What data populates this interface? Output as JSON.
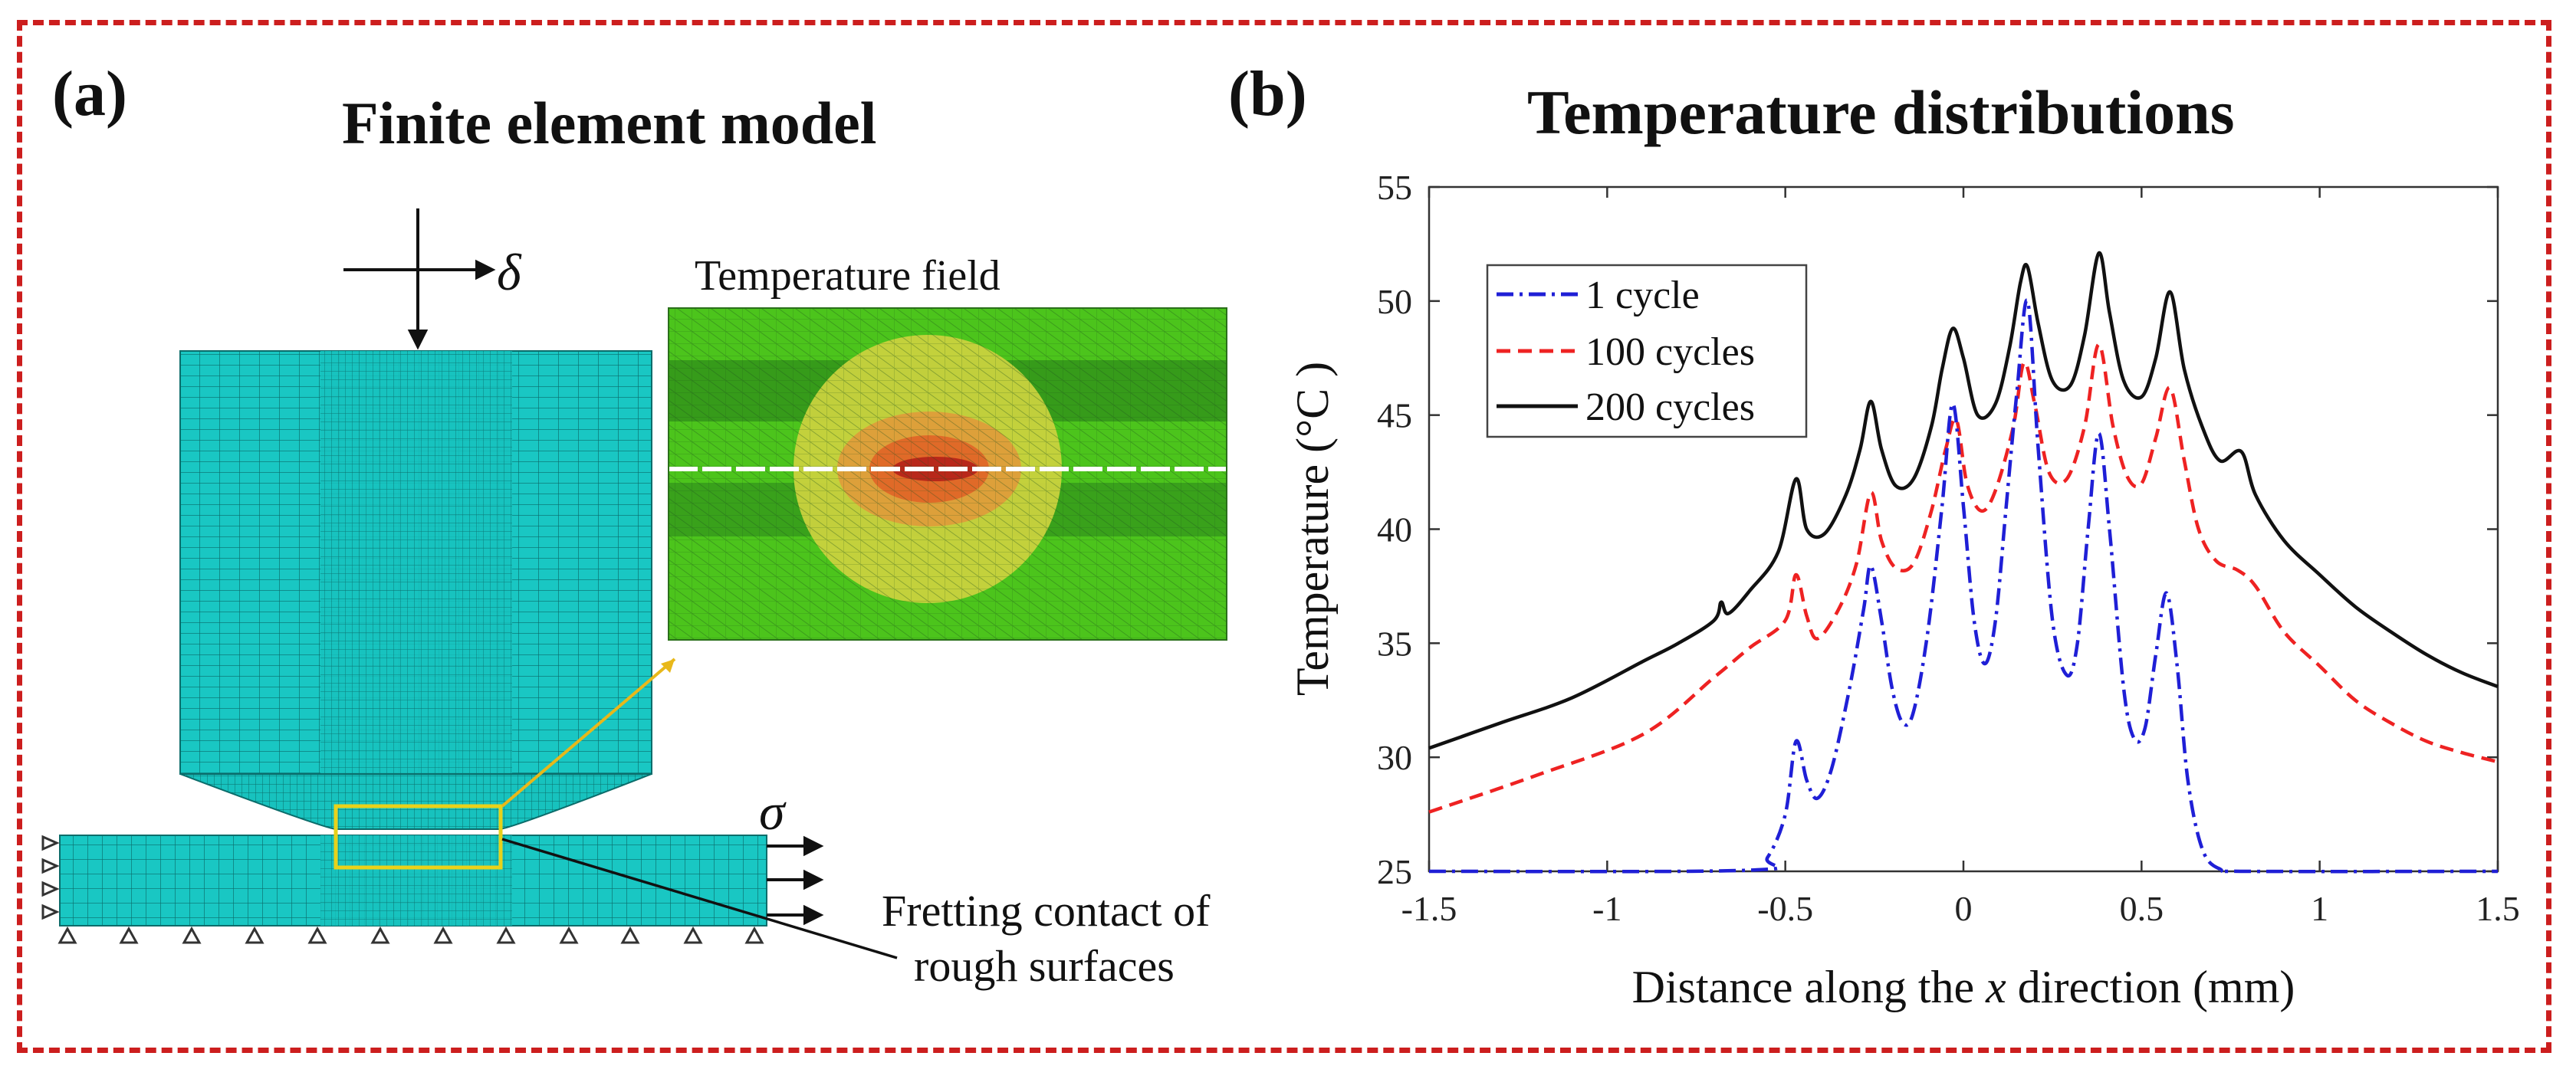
{
  "panel_a": {
    "label": "(a)",
    "title": "Finite element model",
    "inset_title": "Temperature field",
    "delta_symbol": "δ",
    "sigma_symbol": "σ",
    "annotation_line1": "Fretting contact of",
    "annotation_line2": "rough surfaces",
    "colors": {
      "mesh": "#19c7c3",
      "mesh_line": "#0b6d6b",
      "frame": "#cc1e1e",
      "highlight": "#e8d21a"
    }
  },
  "panel_b": {
    "label": "(b)"
  },
  "chart_data": {
    "type": "line",
    "title": "Temperature distributions",
    "xlabel_prefix": "Distance along the ",
    "xlabel_var": "x",
    "xlabel_suffix": " direction (mm)",
    "ylabel": "Temperature (°C )",
    "xlim": [
      -1.5,
      1.5
    ],
    "ylim": [
      25,
      55
    ],
    "xticks": [
      -1.5,
      -1,
      -0.5,
      0,
      0.5,
      1,
      1.5
    ],
    "xtick_labels": [
      "-1.5",
      "-1",
      "-0.5",
      "0",
      "0.5",
      "1",
      "1.5"
    ],
    "yticks": [
      25,
      30,
      35,
      40,
      45,
      50,
      55
    ],
    "ytick_labels": [
      "25",
      "30",
      "35",
      "40",
      "45",
      "50",
      "55"
    ],
    "legend_position": "top-left",
    "series": [
      {
        "name": "1 cycle",
        "color": "#1f1fd6",
        "style": "dashdot",
        "points": [
          [
            -1.5,
            25
          ],
          [
            -0.6,
            25.05
          ],
          [
            -0.55,
            25.6
          ],
          [
            -0.5,
            27.5
          ],
          [
            -0.47,
            30.7
          ],
          [
            -0.44,
            29
          ],
          [
            -0.41,
            28.2
          ],
          [
            -0.37,
            29.5
          ],
          [
            -0.32,
            33
          ],
          [
            -0.28,
            36.5
          ],
          [
            -0.26,
            38.4
          ],
          [
            -0.23,
            36
          ],
          [
            -0.2,
            33
          ],
          [
            -0.17,
            31.5
          ],
          [
            -0.14,
            32
          ],
          [
            -0.1,
            35.5
          ],
          [
            -0.06,
            41
          ],
          [
            -0.03,
            45.5
          ],
          [
            0,
            41
          ],
          [
            0.03,
            36
          ],
          [
            0.06,
            34.1
          ],
          [
            0.09,
            36
          ],
          [
            0.12,
            41
          ],
          [
            0.15,
            46
          ],
          [
            0.18,
            50
          ],
          [
            0.21,
            43.5
          ],
          [
            0.25,
            36
          ],
          [
            0.29,
            33.6
          ],
          [
            0.32,
            35
          ],
          [
            0.35,
            40
          ],
          [
            0.38,
            44.2
          ],
          [
            0.41,
            40
          ],
          [
            0.45,
            33
          ],
          [
            0.48,
            30.8
          ],
          [
            0.51,
            31.3
          ],
          [
            0.54,
            34.5
          ],
          [
            0.57,
            37.2
          ],
          [
            0.6,
            34
          ],
          [
            0.63,
            29
          ],
          [
            0.67,
            26
          ],
          [
            0.72,
            25.1
          ],
          [
            0.8,
            25
          ],
          [
            1.5,
            25
          ]
        ]
      },
      {
        "name": "100 cycles",
        "color": "#ee2222",
        "style": "dashed",
        "points": [
          [
            -1.5,
            27.6
          ],
          [
            -1.2,
            29.2
          ],
          [
            -0.9,
            31
          ],
          [
            -0.7,
            33.5
          ],
          [
            -0.6,
            34.8
          ],
          [
            -0.5,
            36
          ],
          [
            -0.47,
            38
          ],
          [
            -0.44,
            36.2
          ],
          [
            -0.41,
            35.2
          ],
          [
            -0.35,
            36.5
          ],
          [
            -0.3,
            38.5
          ],
          [
            -0.26,
            41.6
          ],
          [
            -0.23,
            39.5
          ],
          [
            -0.19,
            38.3
          ],
          [
            -0.14,
            38.5
          ],
          [
            -0.09,
            40.8
          ],
          [
            -0.05,
            43.5
          ],
          [
            -0.02,
            44.8
          ],
          [
            0.01,
            42
          ],
          [
            0.05,
            40.8
          ],
          [
            0.09,
            41.7
          ],
          [
            0.14,
            44.5
          ],
          [
            0.17,
            47.3
          ],
          [
            0.2,
            45.5
          ],
          [
            0.24,
            42.5
          ],
          [
            0.29,
            42.2
          ],
          [
            0.34,
            44.5
          ],
          [
            0.38,
            48.1
          ],
          [
            0.42,
            44.5
          ],
          [
            0.46,
            42.3
          ],
          [
            0.5,
            42
          ],
          [
            0.54,
            44
          ],
          [
            0.58,
            46.2
          ],
          [
            0.62,
            43
          ],
          [
            0.66,
            40
          ],
          [
            0.71,
            38.6
          ],
          [
            0.77,
            38.2
          ],
          [
            0.82,
            37.5
          ],
          [
            0.9,
            35.5
          ],
          [
            1,
            34
          ],
          [
            1.1,
            32.5
          ],
          [
            1.2,
            31.5
          ],
          [
            1.3,
            30.7
          ],
          [
            1.4,
            30.2
          ],
          [
            1.5,
            29.8
          ]
        ]
      },
      {
        "name": "200 cycles",
        "color": "#111111",
        "style": "solid",
        "points": [
          [
            -1.5,
            30.4
          ],
          [
            -1.3,
            31.5
          ],
          [
            -1.1,
            32.6
          ],
          [
            -0.9,
            34.2
          ],
          [
            -0.8,
            35
          ],
          [
            -0.7,
            36
          ],
          [
            -0.68,
            36.8
          ],
          [
            -0.66,
            36.3
          ],
          [
            -0.6,
            37.3
          ],
          [
            -0.52,
            39
          ],
          [
            -0.47,
            42.2
          ],
          [
            -0.44,
            40
          ],
          [
            -0.39,
            39.8
          ],
          [
            -0.33,
            41.5
          ],
          [
            -0.29,
            43.5
          ],
          [
            -0.26,
            45.6
          ],
          [
            -0.23,
            43.5
          ],
          [
            -0.19,
            41.9
          ],
          [
            -0.14,
            42.2
          ],
          [
            -0.09,
            44.5
          ],
          [
            -0.06,
            47
          ],
          [
            -0.03,
            48.8
          ],
          [
            0,
            47.5
          ],
          [
            0.04,
            45
          ],
          [
            0.09,
            45.5
          ],
          [
            0.13,
            48
          ],
          [
            0.16,
            50.8
          ],
          [
            0.18,
            51.5
          ],
          [
            0.21,
            49
          ],
          [
            0.25,
            46.5
          ],
          [
            0.3,
            46.3
          ],
          [
            0.34,
            48.5
          ],
          [
            0.38,
            52.1
          ],
          [
            0.41,
            49.5
          ],
          [
            0.45,
            46.5
          ],
          [
            0.5,
            45.8
          ],
          [
            0.54,
            47.5
          ],
          [
            0.58,
            50.4
          ],
          [
            0.62,
            47
          ],
          [
            0.67,
            44.5
          ],
          [
            0.72,
            43
          ],
          [
            0.78,
            43.4
          ],
          [
            0.82,
            41.5
          ],
          [
            0.9,
            39.5
          ],
          [
            1,
            38
          ],
          [
            1.1,
            36.6
          ],
          [
            1.2,
            35.5
          ],
          [
            1.3,
            34.5
          ],
          [
            1.4,
            33.7
          ],
          [
            1.5,
            33.1
          ]
        ]
      }
    ]
  }
}
